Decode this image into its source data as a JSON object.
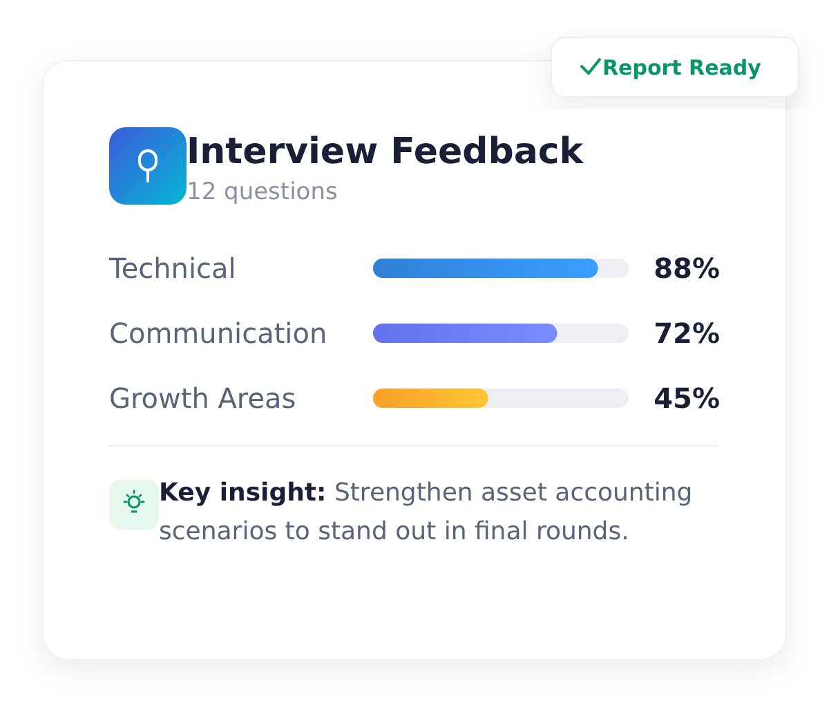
{
  "chart_data": {
    "type": "bar",
    "orientation": "horizontal",
    "title": "Interview Feedback",
    "subtitle": "12 questions",
    "categories": [
      "Technical",
      "Communication",
      "Growth Areas"
    ],
    "values": [
      88,
      72,
      45
    ],
    "colors": [
      "#2f80d8",
      "#6272ea",
      "#f7a02a"
    ],
    "value_labels": [
      "88%",
      "72%",
      "45%"
    ],
    "xlim": [
      0,
      100
    ],
    "annotations": [
      "Report Ready",
      "Key insight:",
      "Strengthen asset accounting scenarios to stand out in final rounds."
    ]
  }
}
